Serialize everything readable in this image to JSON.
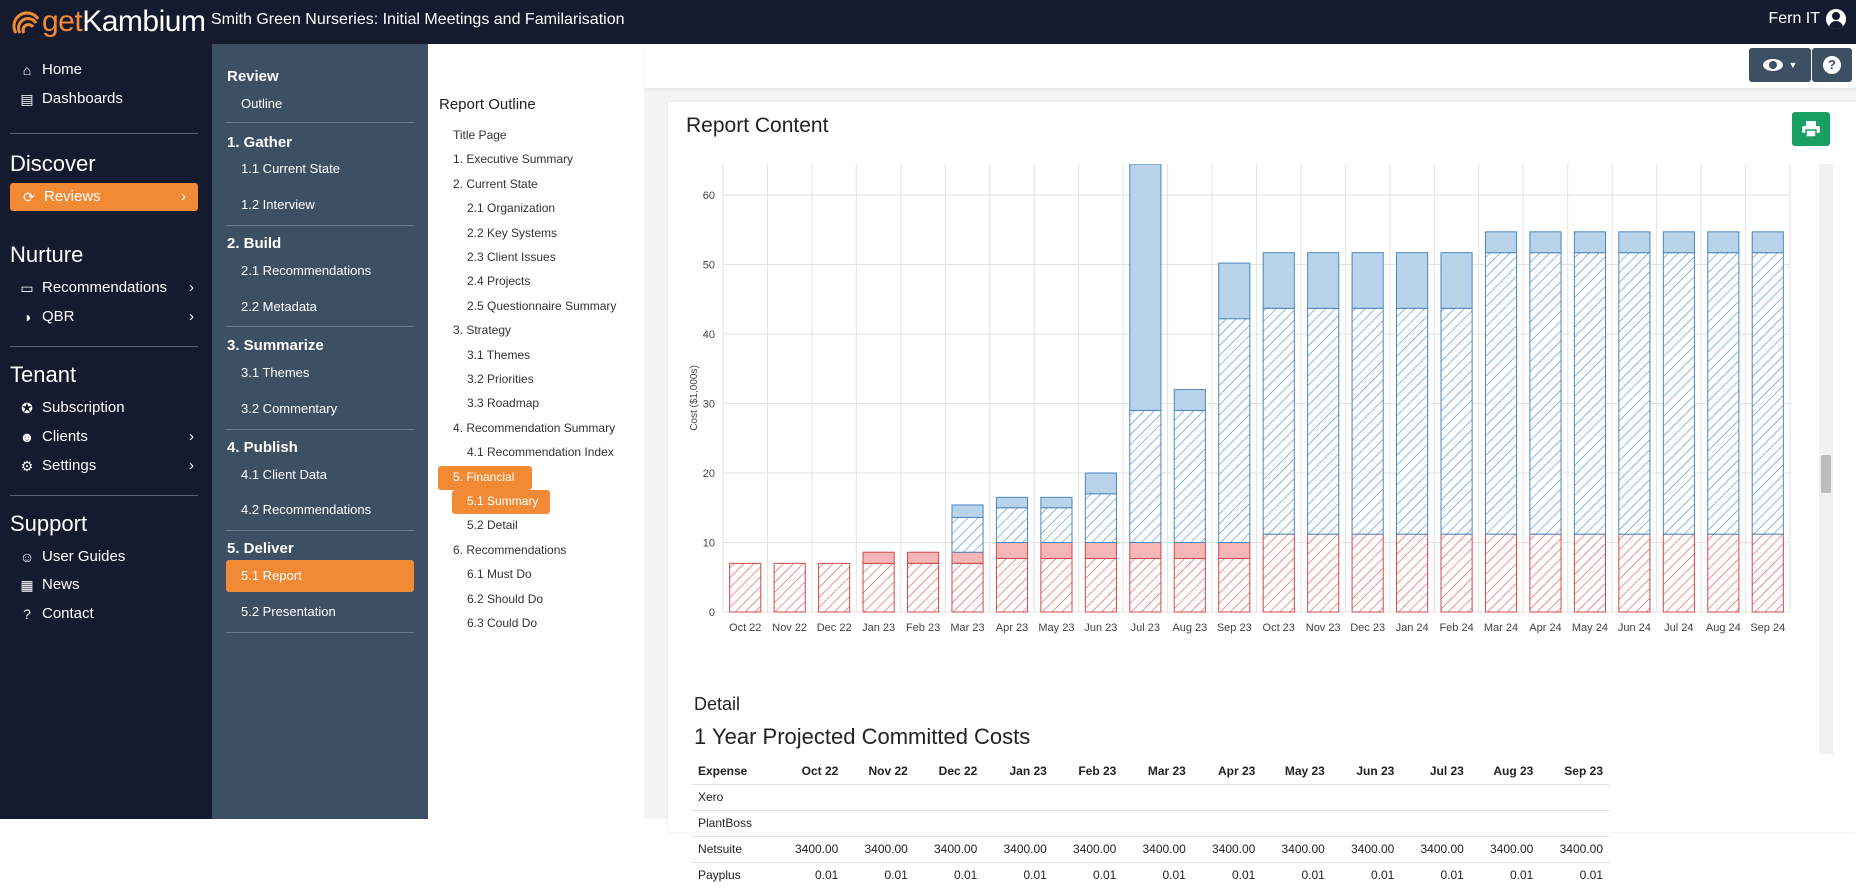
{
  "app": {
    "logo_get": "get",
    "logo_kambium": "Kambium",
    "title": "Smith Green Nurseries: Initial Meetings and Familarisation",
    "user": "Fern IT"
  },
  "sidebar": {
    "home": "Home",
    "dashboards": "Dashboards",
    "discover": "Discover",
    "reviews": "Reviews",
    "nurture": "Nurture",
    "recommendations": "Recommendations",
    "qbr": "QBR",
    "tenant": "Tenant",
    "subscription": "Subscription",
    "clients": "Clients",
    "settings": "Settings",
    "support": "Support",
    "user_guides": "User Guides",
    "news": "News",
    "contact": "Contact"
  },
  "steps": {
    "review": "Review",
    "outline": "Outline",
    "gather": "1. Gather",
    "current_state": "1.1 Current State",
    "interview": "1.2 Interview",
    "build": "2. Build",
    "recommendations": "2.1 Recommendations",
    "metadata": "2.2 Metadata",
    "summarize": "3. Summarize",
    "themes": "3.1 Themes",
    "commentary": "3.2 Commentary",
    "publish": "4. Publish",
    "client_data": "4.1 Client Data",
    "pub_recommendations": "4.2 Recommendations",
    "deliver": "5. Deliver",
    "report": "5.1 Report",
    "presentation": "5.2 Presentation"
  },
  "outline": {
    "title": "Report Outline",
    "items": [
      "Title Page",
      "1. Executive Summary",
      "2. Current State",
      "2.1 Organization",
      "2.2 Key Systems",
      "2.3 Client Issues",
      "2.4 Projects",
      "2.5 Questionnaire Summary",
      "3. Strategy",
      "3.1 Themes",
      "3.2 Priorities",
      "3.3 Roadmap",
      "4. Recommendation Summary",
      "4.1 Recommendation Index",
      "5. Financial",
      "5.1 Summary",
      "5.2 Detail",
      "6. Recommendations",
      "6.1 Must Do",
      "6.2 Should Do",
      "6.3 Could Do"
    ]
  },
  "content": {
    "title": "Report Content",
    "detail_heading": "Detail",
    "detail_subheading": "1 Year Projected Committed Costs"
  },
  "chart_data": {
    "type": "bar",
    "stacked": true,
    "ylabel": "Cost ($1,000s)",
    "yticks": [
      0,
      10,
      20,
      30,
      40,
      50,
      60
    ],
    "ylim": [
      0,
      65
    ],
    "categories": [
      "Oct 22",
      "Nov 22",
      "Dec 22",
      "Jan 23",
      "Feb 23",
      "Mar 23",
      "Apr 23",
      "May 23",
      "Jun 23",
      "Jul 23",
      "Aug 23",
      "Sep 23",
      "Oct 23",
      "Nov 23",
      "Dec 23",
      "Jan 24",
      "Feb 24",
      "Mar 24",
      "Apr 24",
      "May 24",
      "Jun 24",
      "Jul 24",
      "Aug 24",
      "Sep 24"
    ],
    "series": [
      {
        "color": "#e06666",
        "pattern": "hatch",
        "values": [
          7.0,
          7.0,
          7.0,
          7.0,
          7.0,
          7.0,
          7.7,
          7.7,
          7.7,
          7.7,
          7.7,
          7.7,
          11.2,
          11.2,
          11.2,
          11.2,
          11.2,
          11.2,
          11.2,
          11.2,
          11.2,
          11.2,
          11.2,
          11.2
        ]
      },
      {
        "color": "#e06666",
        "pattern": "solid",
        "values": [
          0,
          0,
          0,
          1.6,
          1.6,
          1.6,
          2.3,
          2.3,
          2.3,
          2.3,
          2.3,
          2.3,
          0,
          0,
          0,
          0,
          0,
          0,
          0,
          0,
          0,
          0,
          0,
          0
        ]
      },
      {
        "color": "#5a9bd5",
        "pattern": "hatch",
        "values": [
          0,
          0,
          0,
          0,
          0,
          5.0,
          5.0,
          5.0,
          7.0,
          19.0,
          19.0,
          32.2,
          32.5,
          32.5,
          32.5,
          32.5,
          32.5,
          40.5,
          40.5,
          40.5,
          40.5,
          40.5,
          40.5,
          40.5
        ]
      },
      {
        "color": "#5a9bd5",
        "pattern": "solid",
        "values": [
          0,
          0,
          0,
          0,
          0,
          1.8,
          1.5,
          1.5,
          3.0,
          40.0,
          3.0,
          8.0,
          8.0,
          8.0,
          8.0,
          8.0,
          8.0,
          3.0,
          3.0,
          3.0,
          3.0,
          3.0,
          3.0,
          3.0
        ]
      }
    ]
  },
  "table": {
    "headers": [
      "Expense",
      "Oct 22",
      "Nov 22",
      "Dec 22",
      "Jan 23",
      "Feb 23",
      "Mar 23",
      "Apr 23",
      "May 23",
      "Jun 23",
      "Jul 23",
      "Aug 23",
      "Sep 23"
    ],
    "rows": [
      [
        "Xero",
        "",
        "",
        "",
        "",
        "",
        "",
        "",
        "",
        "",
        "",
        "",
        ""
      ],
      [
        "PlantBoss",
        "",
        "",
        "",
        "",
        "",
        "",
        "",
        "",
        "",
        "",
        "",
        ""
      ],
      [
        "Netsuite",
        "3400.00",
        "3400.00",
        "3400.00",
        "3400.00",
        "3400.00",
        "3400.00",
        "3400.00",
        "3400.00",
        "3400.00",
        "3400.00",
        "3400.00",
        "3400.00"
      ],
      [
        "Payplus",
        "0.01",
        "0.01",
        "0.01",
        "0.01",
        "0.01",
        "0.01",
        "0.01",
        "0.01",
        "0.01",
        "0.01",
        "0.01",
        "0.01"
      ]
    ]
  },
  "colors": {
    "nav_bg": "#141b2e",
    "steps_bg": "#3d4f63",
    "accent": "#f28a35",
    "print_button": "#17a062"
  }
}
